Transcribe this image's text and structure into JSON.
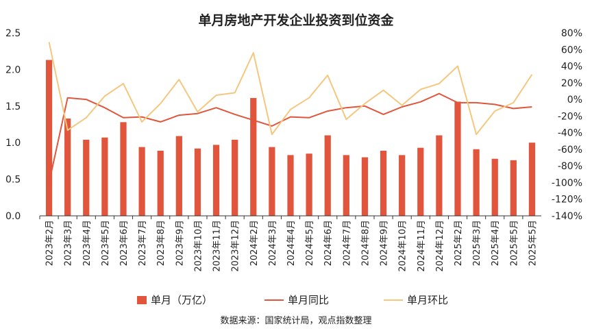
{
  "chart_data": {
    "type": "bar+line",
    "title": "单月房地产开发企业投资到位资金",
    "source": "数据来源：国家统计局，观点指数整理",
    "categories": [
      "2023年2月",
      "2023年3月",
      "2023年4月",
      "2023年5月",
      "2023年6月",
      "2023年7月",
      "2023年8月",
      "2023年9月",
      "2023年10月",
      "2023年11月",
      "2023年12月",
      "2024年2月",
      "2024年3月",
      "2024年4月",
      "2024年5月",
      "2024年6月",
      "2024年7月",
      "2024年8月",
      "2024年9月",
      "2024年10月",
      "2024年11月",
      "2024年12月",
      "2025年2月",
      "2025年3月",
      "2025年4月",
      "2025年5月",
      "2025年5月"
    ],
    "left_axis": {
      "min": 0,
      "max": 2.5,
      "ticks": [
        "0.0",
        "0.5",
        "1.0",
        "1.5",
        "2.0",
        "2.5"
      ]
    },
    "right_axis": {
      "min": -140,
      "max": 80,
      "ticks": [
        "-140%",
        "-120%",
        "-100%",
        "-80%",
        "-60%",
        "-40%",
        "-20%",
        "0%",
        "20%",
        "40%",
        "60%",
        "80%"
      ]
    },
    "series": [
      {
        "name": "单月（万亿）",
        "kind": "bar",
        "axis": "left",
        "color": "#e0553b",
        "values": [
          2.13,
          1.33,
          1.04,
          1.07,
          1.28,
          0.94,
          0.89,
          1.09,
          0.92,
          0.97,
          1.04,
          1.61,
          0.94,
          0.83,
          0.85,
          1.1,
          0.83,
          0.8,
          0.89,
          0.83,
          0.93,
          1.1,
          1.56,
          0.91,
          0.78,
          0.76,
          1.0
        ]
      },
      {
        "name": "单月同比",
        "kind": "line",
        "axis": "right",
        "color": "#e0553b",
        "values": [
          -100,
          2,
          0,
          -10,
          -22,
          -21,
          -27,
          -19,
          -17,
          -10,
          -18,
          -25,
          -32,
          -21,
          -22,
          -14,
          -10,
          -8,
          -18,
          -9,
          -3,
          7,
          -4,
          -4,
          -6,
          -11,
          -9
        ]
      },
      {
        "name": "单月环比",
        "kind": "line",
        "axis": "right",
        "color": "#f5c77e",
        "values": [
          69,
          -37,
          -22,
          4,
          19,
          -27,
          -5,
          24,
          -15,
          5,
          8,
          56,
          -42,
          -12,
          2,
          29,
          -24,
          -5,
          11,
          -7,
          12,
          19,
          40,
          -42,
          -14,
          -4,
          30
        ]
      }
    ]
  }
}
